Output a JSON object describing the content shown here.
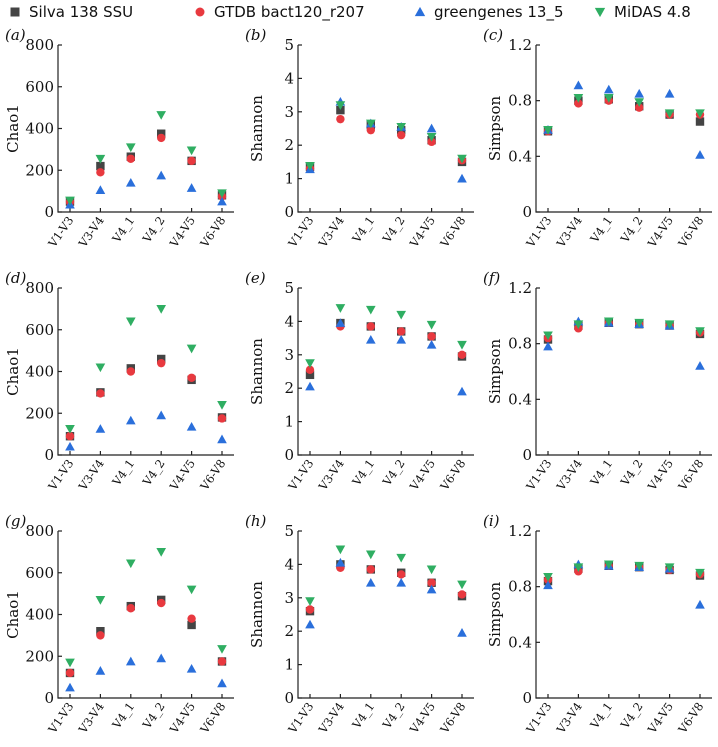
{
  "legend": [
    {
      "name": "Silva 138 SSU",
      "color": "#444444",
      "marker": "square"
    },
    {
      "name": "GTDB bact120_r207",
      "color": "#e8393f",
      "marker": "circle"
    },
    {
      "name": "greengenes 13_5",
      "color": "#2a6fdb",
      "marker": "triangle-up"
    },
    {
      "name": "MiDAS 4.8",
      "color": "#2fae62",
      "marker": "triangle-down"
    }
  ],
  "chart_data": [
    {
      "id": "a",
      "label": "(a)",
      "type": "scatter",
      "ylabel": "Chao1",
      "ylim": [
        0,
        800
      ],
      "yticks": [
        0,
        200,
        400,
        600,
        800
      ],
      "categories": [
        "V1-V3",
        "V3-V4",
        "V4_1",
        "V4_2",
        "V4-V5",
        "V6-V8"
      ],
      "series": [
        {
          "name": "Silva 138 SSU",
          "values": [
            50,
            220,
            265,
            375,
            245,
            80
          ]
        },
        {
          "name": "GTDB bact120_r207",
          "values": [
            48,
            190,
            255,
            355,
            245,
            75
          ]
        },
        {
          "name": "greengenes 13_5",
          "values": [
            35,
            105,
            140,
            175,
            115,
            50
          ]
        },
        {
          "name": "MiDAS 4.8",
          "values": [
            55,
            255,
            310,
            465,
            295,
            90
          ]
        }
      ]
    },
    {
      "id": "b",
      "label": "(b)",
      "type": "scatter",
      "ylabel": "Shannon",
      "ylim": [
        0,
        5
      ],
      "yticks": [
        0,
        1,
        2,
        3,
        4,
        5
      ],
      "categories": [
        "V1-V3",
        "V3-V4",
        "V4_1",
        "V4_2",
        "V4-V5",
        "V6-V8"
      ],
      "series": [
        {
          "name": "Silva 138 SSU",
          "values": [
            1.35,
            3.05,
            2.6,
            2.45,
            2.15,
            1.5
          ]
        },
        {
          "name": "GTDB bact120_r207",
          "values": [
            1.3,
            2.78,
            2.45,
            2.3,
            2.1,
            1.55
          ]
        },
        {
          "name": "greengenes 13_5",
          "values": [
            1.28,
            3.3,
            2.65,
            2.55,
            2.5,
            1.0
          ]
        },
        {
          "name": "MiDAS 4.8",
          "values": [
            1.38,
            3.2,
            2.65,
            2.55,
            2.25,
            1.6
          ]
        }
      ]
    },
    {
      "id": "c",
      "label": "(c)",
      "type": "scatter",
      "ylabel": "Simpson",
      "ylim": [
        0,
        1.2
      ],
      "yticks": [
        0,
        0.4,
        0.8,
        1.2
      ],
      "categories": [
        "V1-V3",
        "V3-V4",
        "V4_1",
        "V4_2",
        "V4-V5",
        "V6-V8"
      ],
      "series": [
        {
          "name": "Silva 138 SSU",
          "values": [
            0.58,
            0.8,
            0.81,
            0.76,
            0.7,
            0.65
          ]
        },
        {
          "name": "GTDB bact120_r207",
          "values": [
            0.58,
            0.78,
            0.8,
            0.75,
            0.7,
            0.7
          ]
        },
        {
          "name": "greengenes 13_5",
          "values": [
            0.59,
            0.91,
            0.88,
            0.85,
            0.85,
            0.41
          ]
        },
        {
          "name": "MiDAS 4.8",
          "values": [
            0.59,
            0.82,
            0.82,
            0.79,
            0.71,
            0.71
          ]
        }
      ]
    },
    {
      "id": "d",
      "label": "(d)",
      "type": "scatter",
      "ylabel": "Chao1",
      "ylim": [
        0,
        800
      ],
      "yticks": [
        0,
        200,
        400,
        600,
        800
      ],
      "categories": [
        "V1-V3",
        "V3-V4",
        "V4_1",
        "V4_2",
        "V4-V5",
        "V6-V8"
      ],
      "series": [
        {
          "name": "Silva 138 SSU",
          "values": [
            90,
            300,
            415,
            460,
            360,
            180
          ]
        },
        {
          "name": "GTDB bact120_r207",
          "values": [
            90,
            295,
            400,
            440,
            370,
            175
          ]
        },
        {
          "name": "greengenes 13_5",
          "values": [
            40,
            125,
            165,
            190,
            135,
            75
          ]
        },
        {
          "name": "MiDAS 4.8",
          "values": [
            125,
            420,
            640,
            700,
            510,
            240
          ]
        }
      ]
    },
    {
      "id": "e",
      "label": "(e)",
      "type": "scatter",
      "ylabel": "Shannon",
      "ylim": [
        0,
        5
      ],
      "yticks": [
        0,
        1,
        2,
        3,
        4,
        5
      ],
      "categories": [
        "V1-V3",
        "V3-V4",
        "V4_1",
        "V4_2",
        "V4-V5",
        "V6-V8"
      ],
      "series": [
        {
          "name": "Silva 138 SSU",
          "values": [
            2.4,
            3.95,
            3.85,
            3.7,
            3.55,
            2.95
          ]
        },
        {
          "name": "GTDB bact120_r207",
          "values": [
            2.55,
            3.85,
            3.85,
            3.7,
            3.55,
            3.0
          ]
        },
        {
          "name": "greengenes 13_5",
          "values": [
            2.05,
            3.95,
            3.45,
            3.45,
            3.3,
            1.9
          ]
        },
        {
          "name": "MiDAS 4.8",
          "values": [
            2.75,
            4.4,
            4.35,
            4.2,
            3.9,
            3.3
          ]
        }
      ]
    },
    {
      "id": "f",
      "label": "(f)",
      "type": "scatter",
      "ylabel": "Simpson",
      "ylim": [
        0,
        1.2
      ],
      "yticks": [
        0,
        0.4,
        0.8,
        1.2
      ],
      "categories": [
        "V1-V3",
        "V3-V4",
        "V4_1",
        "V4_2",
        "V4-V5",
        "V6-V8"
      ],
      "series": [
        {
          "name": "Silva 138 SSU",
          "values": [
            0.83,
            0.93,
            0.95,
            0.94,
            0.93,
            0.87
          ]
        },
        {
          "name": "GTDB bact120_r207",
          "values": [
            0.84,
            0.91,
            0.95,
            0.94,
            0.93,
            0.88
          ]
        },
        {
          "name": "greengenes 13_5",
          "values": [
            0.78,
            0.96,
            0.95,
            0.94,
            0.93,
            0.64
          ]
        },
        {
          "name": "MiDAS 4.8",
          "values": [
            0.86,
            0.94,
            0.96,
            0.95,
            0.94,
            0.89
          ]
        }
      ]
    },
    {
      "id": "g",
      "label": "(g)",
      "type": "scatter",
      "ylabel": "Chao1",
      "ylim": [
        0,
        800
      ],
      "yticks": [
        0,
        200,
        400,
        600,
        800
      ],
      "categories": [
        "V1-V3",
        "V3-V4",
        "V4_1",
        "V4_2",
        "V4-V5",
        "V6-V8"
      ],
      "series": [
        {
          "name": "Silva 138 SSU",
          "values": [
            120,
            320,
            440,
            470,
            350,
            175
          ]
        },
        {
          "name": "GTDB bact120_r207",
          "values": [
            120,
            300,
            430,
            455,
            380,
            175
          ]
        },
        {
          "name": "greengenes 13_5",
          "values": [
            50,
            130,
            175,
            190,
            140,
            70
          ]
        },
        {
          "name": "MiDAS 4.8",
          "values": [
            170,
            470,
            645,
            700,
            520,
            235
          ]
        }
      ]
    },
    {
      "id": "h",
      "label": "(h)",
      "type": "scatter",
      "ylabel": "Shannon",
      "ylim": [
        0,
        5
      ],
      "yticks": [
        0,
        1,
        2,
        3,
        4,
        5
      ],
      "categories": [
        "V1-V3",
        "V3-V4",
        "V4_1",
        "V4_2",
        "V4-V5",
        "V6-V8"
      ],
      "series": [
        {
          "name": "Silva 138 SSU",
          "values": [
            2.6,
            4.0,
            3.85,
            3.75,
            3.45,
            3.05
          ]
        },
        {
          "name": "GTDB bact120_r207",
          "values": [
            2.65,
            3.9,
            3.85,
            3.7,
            3.45,
            3.1
          ]
        },
        {
          "name": "greengenes 13_5",
          "values": [
            2.2,
            4.05,
            3.45,
            3.45,
            3.25,
            1.95
          ]
        },
        {
          "name": "MiDAS 4.8",
          "values": [
            2.9,
            4.45,
            4.3,
            4.2,
            3.85,
            3.4
          ]
        }
      ]
    },
    {
      "id": "i",
      "label": "(i)",
      "type": "scatter",
      "ylabel": "Simpson",
      "ylim": [
        0,
        1.2
      ],
      "yticks": [
        0,
        0.4,
        0.8,
        1.2
      ],
      "categories": [
        "V1-V3",
        "V3-V4",
        "V4_1",
        "V4_2",
        "V4-V5",
        "V6-V8"
      ],
      "series": [
        {
          "name": "Silva 138 SSU",
          "values": [
            0.84,
            0.93,
            0.95,
            0.94,
            0.92,
            0.88
          ]
        },
        {
          "name": "GTDB bact120_r207",
          "values": [
            0.85,
            0.91,
            0.95,
            0.94,
            0.92,
            0.89
          ]
        },
        {
          "name": "greengenes 13_5",
          "values": [
            0.81,
            0.96,
            0.95,
            0.94,
            0.93,
            0.67
          ]
        },
        {
          "name": "MiDAS 4.8",
          "values": [
            0.87,
            0.94,
            0.96,
            0.95,
            0.94,
            0.9
          ]
        }
      ]
    }
  ]
}
